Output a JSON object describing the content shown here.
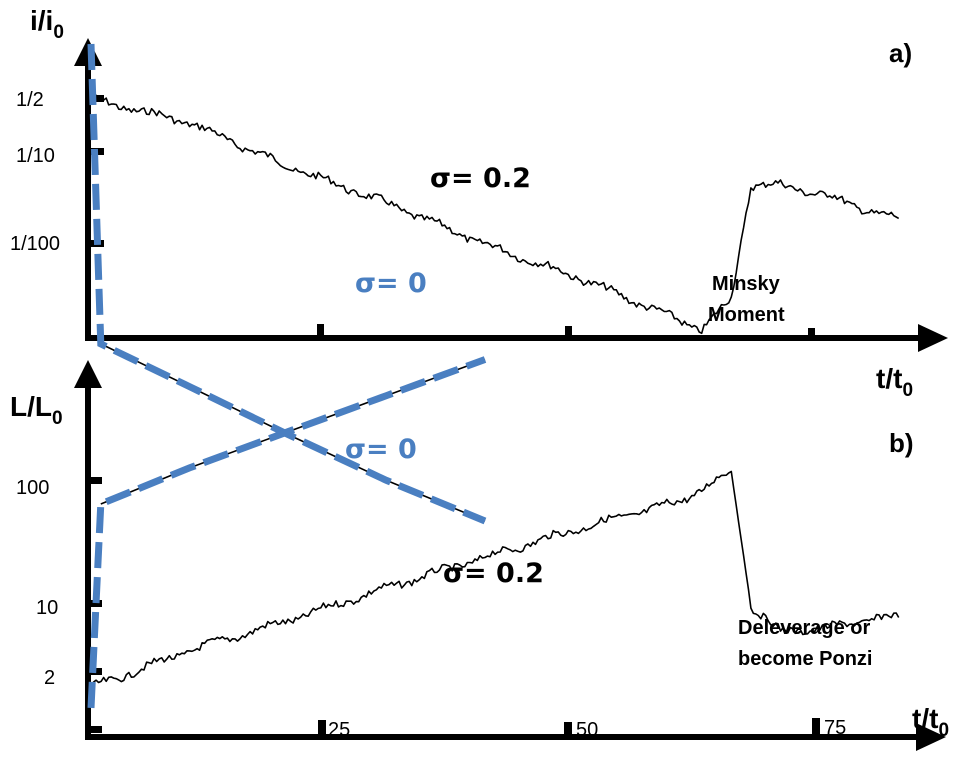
{
  "chart_data": [
    {
      "panel": "a)",
      "type": "line",
      "ylabel": "i/i",
      "ylabel_sub": "0",
      "xlabel": "t/t",
      "xlabel_sub": "0",
      "yscale": "log",
      "y_ticks": [
        "1/2",
        "1/10",
        "1/100"
      ],
      "x_ticks": [
        25,
        50,
        75
      ],
      "x_tick_labels_shown": false,
      "xlim": [
        0,
        85
      ],
      "series": [
        {
          "name": "σ= 0.2",
          "color": "#000000",
          "style": "noisy-solid",
          "x": [
            0,
            10,
            20,
            30,
            40,
            50,
            60,
            62,
            65,
            67,
            70,
            75,
            80,
            82
          ],
          "y": [
            0.45,
            0.32,
            0.17,
            0.1,
            0.055,
            0.033,
            0.018,
            0.016,
            0.025,
            0.13,
            0.13,
            0.11,
            0.085,
            0.08
          ]
        },
        {
          "name": "σ= 0",
          "color": "#4a7fc1",
          "style": "dashed",
          "x": [
            0,
            1,
            10,
            20,
            30,
            40
          ],
          "y": [
            1,
            0.013,
            0.007,
            0.0035,
            0.0018,
            0.001
          ]
        }
      ],
      "annotations": [
        "Minsky",
        "Moment"
      ]
    },
    {
      "panel": "b)",
      "type": "line",
      "ylabel": "L/L",
      "ylabel_sub": "0",
      "xlabel": "t/t",
      "xlabel_sub": "0",
      "yscale": "log",
      "y_ticks": [
        "100",
        "10",
        "2"
      ],
      "x_ticks": [
        25,
        50,
        75
      ],
      "x_tick_labels": [
        "25",
        "50",
        "75"
      ],
      "xlim": [
        0,
        85
      ],
      "series": [
        {
          "name": "σ= 0.2",
          "color": "#000000",
          "style": "noisy-solid",
          "x": [
            0,
            10,
            20,
            30,
            40,
            50,
            60,
            65,
            67,
            70,
            75,
            80,
            82
          ],
          "y": [
            2.2,
            4.5,
            8,
            15,
            27,
            48,
            80,
            140,
            10.5,
            6.5,
            7,
            8.5,
            8.5
          ]
        },
        {
          "name": "σ= 0",
          "color": "#4a7fc1",
          "style": "dashed",
          "x": [
            0,
            1,
            10,
            20,
            30,
            40
          ],
          "y": [
            1.5,
            75,
            150,
            300,
            600,
            1200
          ]
        }
      ],
      "annotations": [
        "Deleverage or",
        "become Ponzi"
      ]
    }
  ]
}
